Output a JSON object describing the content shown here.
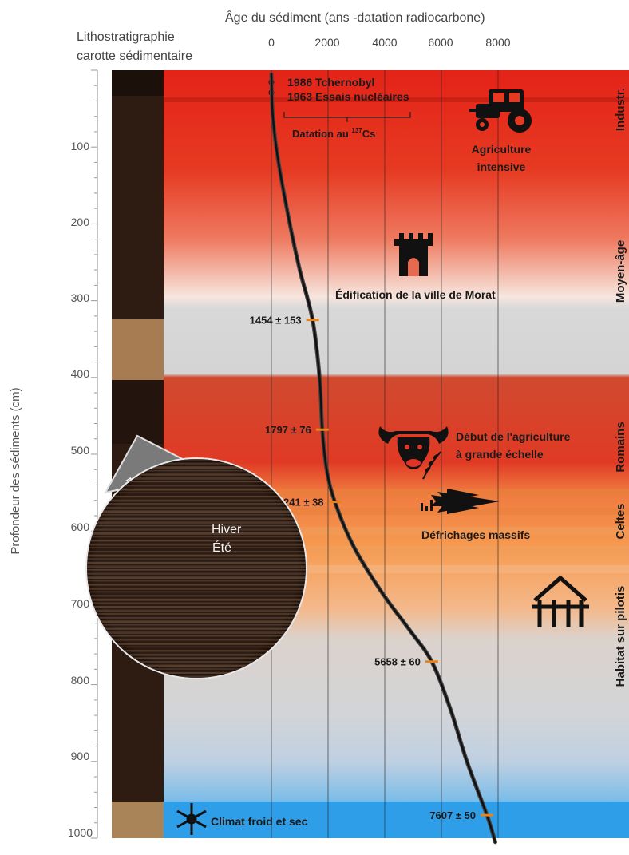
{
  "header": {
    "x_title": "Âge du sédiment (ans -datation radiocarbone)",
    "core_title_line1": "Lithostratigraphie",
    "core_title_line2": "carotte sédimentaire",
    "y_title": "Profondeur des sédiments (cm)"
  },
  "axes": {
    "x_ticks": [
      "0",
      "2000",
      "4000",
      "6000",
      "8000"
    ],
    "y_ticks": [
      "100",
      "200",
      "300",
      "400",
      "500",
      "600",
      "700",
      "800",
      "900",
      "1000"
    ]
  },
  "periods": [
    "Industr.",
    "Moyen-âge",
    "Romains",
    "Celtes",
    "Habitat sur pilotis"
  ],
  "annotations": {
    "tchernobyl": "1986 Tchernobyl",
    "nuclear": "1963 Essais nucléaires",
    "datation_prefix": "Datation au ",
    "datation_sup": "137",
    "datation_suffix": "Cs",
    "agri_intensive_1": "Agriculture",
    "agri_intensive_2": "intensive",
    "morat": "Édification de la ville de Morat",
    "agri_grande_1": "Début de l'agriculture",
    "agri_grande_2": "à grande échelle",
    "defrichages": "Défrichages massifs",
    "climat": "Climat froid et sec",
    "zoom": "Zoom",
    "hiver": "Hiver",
    "ete": "Été"
  },
  "dating_labels": [
    "1454 ± 153",
    "1797 ± 76",
    "2241 ± 38",
    "5658 ± 60",
    "7607 ± 50"
  ],
  "icons": [
    "tractor-icon",
    "castle-icon",
    "cow-head-icon",
    "wheat-icon",
    "forest-icon",
    "stilt-house-icon",
    "snowflake-icon"
  ],
  "colors": {
    "industrial": "#e8261a",
    "roman": "#e03322",
    "celtic": "#f59a50",
    "cold": "#3aa4e8",
    "curve": "#111111",
    "date_marker": "#e8821a"
  },
  "chart_data": {
    "type": "line",
    "xlabel": "Âge du sédiment (ans -datation radiocarbone)",
    "ylabel": "Profondeur des sédiments (cm)",
    "xlim": [
      0,
      8000
    ],
    "ylim": [
      0,
      1000
    ],
    "dated_points": [
      {
        "depth": 325,
        "age": 1454,
        "label": "1454 ± 153"
      },
      {
        "depth": 468,
        "age": 1797,
        "label": "1797 ± 76"
      },
      {
        "depth": 562,
        "age": 2241,
        "label": "2241 ± 38"
      },
      {
        "depth": 770,
        "age": 5658,
        "label": "5658 ± 60"
      },
      {
        "depth": 970,
        "age": 7607,
        "label": "7607 ± 50"
      }
    ],
    "age_depth_curve": [
      {
        "depth": 5,
        "age": 0
      },
      {
        "depth": 60,
        "age": 50
      },
      {
        "depth": 120,
        "age": 250
      },
      {
        "depth": 200,
        "age": 650
      },
      {
        "depth": 260,
        "age": 1000
      },
      {
        "depth": 325,
        "age": 1454
      },
      {
        "depth": 400,
        "age": 1700
      },
      {
        "depth": 468,
        "age": 1797
      },
      {
        "depth": 520,
        "age": 1950
      },
      {
        "depth": 562,
        "age": 2241
      },
      {
        "depth": 620,
        "age": 2900
      },
      {
        "depth": 680,
        "age": 3900
      },
      {
        "depth": 730,
        "age": 4900
      },
      {
        "depth": 770,
        "age": 5658
      },
      {
        "depth": 830,
        "age": 6300
      },
      {
        "depth": 900,
        "age": 6900
      },
      {
        "depth": 970,
        "age": 7607
      },
      {
        "depth": 1005,
        "age": 7900
      }
    ]
  }
}
